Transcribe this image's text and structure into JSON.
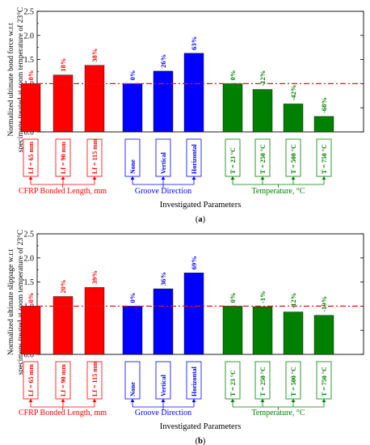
{
  "colors": {
    "cfrp": "#ff0000",
    "groove": "#0000ff",
    "temperature": "#008000",
    "refline": "#d81b1b",
    "axis": "#000000"
  },
  "chart_data": [
    {
      "type": "bar",
      "panel_label": "(a)",
      "ylabel_lines": [
        "Normalized ultimate bond force w.r.t",
        "specimens treated at room temperature of 23°C"
      ],
      "xlabel": "Investigated Parameters",
      "ylim": [
        0,
        2.5
      ],
      "yticks": [
        "0.0",
        "0.5",
        "1.0",
        "1.5",
        "2.0",
        "2.5"
      ],
      "reference_line": 1.0,
      "groups": [
        {
          "name": "CFRP Bonded Length, mm",
          "color": "#ff0000",
          "categories": [
            "Lf = 65 mm",
            "Lf = 90 mm",
            "Lf = 115 mm"
          ],
          "values": [
            1.0,
            1.18,
            1.38
          ],
          "labels": [
            "0%",
            "18%",
            "38%"
          ]
        },
        {
          "name": "Groove Direction",
          "color": "#0000ff",
          "categories": [
            "None",
            "Vertical",
            "Horizontal"
          ],
          "values": [
            1.0,
            1.26,
            1.63
          ],
          "labels": [
            "0%",
            "26%",
            "63%"
          ]
        },
        {
          "name": "Temperature, °C",
          "color": "#008000",
          "categories": [
            "T = 23 °C",
            "T = 250 °C",
            "T = 500 °C",
            "T = 750 °C"
          ],
          "values": [
            1.0,
            0.88,
            0.58,
            0.32
          ],
          "labels": [
            "0%",
            "-12%",
            "-42%",
            "-68%"
          ]
        }
      ]
    },
    {
      "type": "bar",
      "panel_label": "(b)",
      "ylabel_lines": [
        "Normalized ultimate slippage w.r.t",
        "specimens treated at room temperature of 23°C"
      ],
      "xlabel": "Investigated Parameters",
      "ylim": [
        0,
        2.5
      ],
      "yticks": [
        "0.0",
        "0.5",
        "1.0",
        "1.5",
        "2.0",
        "2.5"
      ],
      "reference_line": 1.0,
      "groups": [
        {
          "name": "CFRP Bonded Length, mm",
          "color": "#ff0000",
          "categories": [
            "Lf = 65 mm",
            "Lf = 90 mm",
            "Lf = 115 mm"
          ],
          "values": [
            1.0,
            1.2,
            1.39
          ],
          "labels": [
            "0%",
            "20%",
            "39%"
          ]
        },
        {
          "name": "Groove Direction",
          "color": "#0000ff",
          "categories": [
            "None",
            "Vertical",
            "Horizontal"
          ],
          "values": [
            1.0,
            1.36,
            1.69
          ],
          "labels": [
            "0%",
            "36%",
            "69%"
          ]
        },
        {
          "name": "Temperature, °C",
          "color": "#008000",
          "categories": [
            "T = 23 °C",
            "T = 250 °C",
            "T = 500 °C",
            "T = 750 °C"
          ],
          "values": [
            1.0,
            0.99,
            0.88,
            0.81
          ],
          "labels": [
            "0%",
            "-1%",
            "-12%",
            "-19%"
          ]
        }
      ]
    }
  ]
}
